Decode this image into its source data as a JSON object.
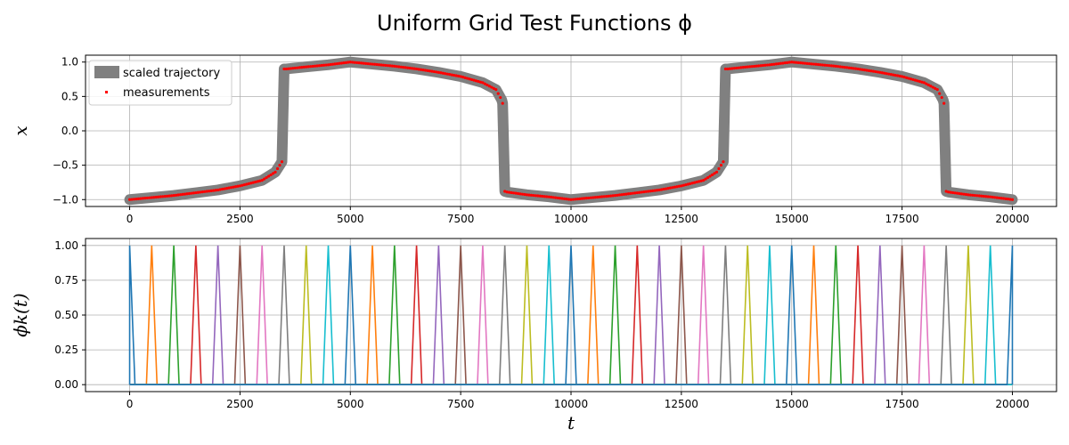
{
  "chart_data": [
    {
      "type": "line",
      "title": "Uniform Grid Test Functions ϕ",
      "ylabel": "x",
      "xlim": [
        -1000,
        21000
      ],
      "ylim": [
        -1.1,
        1.1
      ],
      "xticks": [
        0,
        2500,
        5000,
        7500,
        10000,
        12500,
        15000,
        17500,
        20000
      ],
      "yticks": [
        -1.0,
        -0.5,
        0.0,
        0.5,
        1.0
      ],
      "xtick_labels": [
        "0",
        "2500",
        "5000",
        "7500",
        "10000",
        "12500",
        "15000",
        "17500",
        "20000"
      ],
      "ytick_labels": [
        "−1.0",
        "−0.5",
        "0.0",
        "0.5",
        "1.0"
      ],
      "grid": true,
      "legend": {
        "placement": "upper-left",
        "entries": [
          "scaled trajectory",
          "measurements"
        ]
      },
      "series": [
        {
          "name": "scaled trajectory",
          "color": "#808080",
          "style": "thick-line",
          "x": [
            0,
            500,
            1000,
            1500,
            2000,
            2500,
            3000,
            3300,
            3450,
            3500,
            3550,
            4000,
            4500,
            5000,
            5500,
            6000,
            6500,
            7000,
            7500,
            8000,
            8300,
            8430,
            8450,
            8500,
            8550,
            9000,
            9500,
            10000,
            10500,
            11000,
            11500,
            12000,
            12500,
            13000,
            13300,
            13450,
            13500,
            13550,
            14000,
            14500,
            15000,
            15500,
            16000,
            16500,
            17000,
            17500,
            18000,
            18300,
            18430,
            18450,
            18500,
            18550,
            19000,
            19500,
            20000
          ],
          "y": [
            -1.0,
            -0.97,
            -0.94,
            -0.9,
            -0.86,
            -0.8,
            -0.72,
            -0.6,
            -0.45,
            0.9,
            0.9,
            0.93,
            0.96,
            1.0,
            0.97,
            0.94,
            0.9,
            0.85,
            0.79,
            0.7,
            0.6,
            0.45,
            0.4,
            -0.88,
            -0.89,
            -0.93,
            -0.96,
            -1.0,
            -0.97,
            -0.94,
            -0.9,
            -0.86,
            -0.8,
            -0.72,
            -0.6,
            -0.45,
            0.9,
            0.9,
            0.93,
            0.96,
            1.0,
            0.97,
            0.94,
            0.9,
            0.85,
            0.79,
            0.7,
            0.6,
            0.45,
            0.4,
            -0.88,
            -0.89,
            -0.93,
            -0.96,
            -1.0
          ]
        },
        {
          "name": "measurements",
          "color": "#ff0000",
          "style": "points",
          "step": 50
        }
      ]
    },
    {
      "type": "line",
      "xlabel": "t",
      "ylabel": "ϕk(t)",
      "xlim": [
        -1000,
        21000
      ],
      "ylim": [
        -0.05,
        1.05
      ],
      "xticks": [
        0,
        2500,
        5000,
        7500,
        10000,
        12500,
        15000,
        17500,
        20000
      ],
      "yticks": [
        0.0,
        0.25,
        0.5,
        0.75,
        1.0
      ],
      "xtick_labels": [
        "0",
        "2500",
        "5000",
        "7500",
        "10000",
        "12500",
        "15000",
        "17500",
        "20000"
      ],
      "ytick_labels": [
        "0.00",
        "0.25",
        "0.50",
        "0.75",
        "1.00"
      ],
      "grid": true,
      "peak_spacing": 500,
      "peak_halfwidth": 120,
      "peak_count": 41,
      "colors": [
        "#1f77b4",
        "#ff7f0e",
        "#2ca02c",
        "#d62728",
        "#9467bd",
        "#8c564b",
        "#e377c2",
        "#7f7f7f",
        "#bcbd22",
        "#17becf"
      ]
    }
  ]
}
